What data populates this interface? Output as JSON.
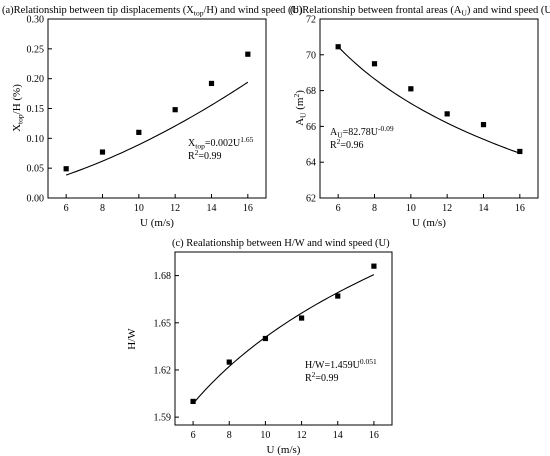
{
  "chart_data": [
    {
      "type": "scatter",
      "title_main": "(a)Relationship between tip displacements (X",
      "title_sub": "top",
      "title_tail": "/H) and wind speed (U)",
      "xlabel": "U (m/s)",
      "ylabel_main": "X",
      "ylabel_sub": "top",
      "ylabel_tail": "/H (%)",
      "xlim": [
        5,
        17
      ],
      "ylim": [
        0,
        0.3
      ],
      "xticks": [
        "6",
        "8",
        "10",
        "12",
        "14",
        "16"
      ],
      "yticks": [
        "0.00",
        "0.05",
        "0.10",
        "0.15",
        "0.20",
        "0.25",
        "0.30"
      ],
      "x": [
        6,
        8,
        10,
        12,
        14,
        16
      ],
      "y": [
        0.049,
        0.077,
        0.11,
        0.148,
        0.192,
        0.241
      ],
      "fit": {
        "a": 0.002,
        "b": 1.65
      },
      "eq_var": "X",
      "eq_var_sub": "top",
      "eq_rhs": "=0.002U",
      "eq_exp": "1.65",
      "r2_lhs": "R",
      "r2_exp": "2",
      "r2_rhs": "=0.99"
    },
    {
      "type": "scatter",
      "title_main": "(b)Relationship between  frontal areas (A",
      "title_sub": "U",
      "title_tail": ") and wind speed (U)",
      "xlabel": "U (m/s)",
      "ylabel_main": "A",
      "ylabel_sub": "U",
      "ylabel_tail": " (m",
      "ylabel_sup": "2",
      "ylabel_end": ")",
      "xlim": [
        5,
        17
      ],
      "ylim": [
        62,
        72
      ],
      "xticks": [
        "6",
        "8",
        "10",
        "12",
        "14",
        "16"
      ],
      "yticks": [
        "62",
        "64",
        "66",
        "68",
        "70",
        "72"
      ],
      "x": [
        6,
        8,
        10,
        12,
        14,
        16
      ],
      "y": [
        70.45,
        69.5,
        68.1,
        66.7,
        66.1,
        64.6
      ],
      "fit": {
        "a": 82.78,
        "b": -0.09
      },
      "eq_var": "A",
      "eq_var_sub": "U",
      "eq_rhs": "=82.78U",
      "eq_exp": "-0.09",
      "r2_lhs": "R",
      "r2_exp": "2",
      "r2_rhs": "=0.96"
    },
    {
      "type": "scatter",
      "title_main": "(c) Realationship between H/W and wind speed (U)",
      "xlabel": "U (m/s)",
      "ylabel_main": "H/W",
      "xlim": [
        5,
        17
      ],
      "ylim": [
        1.585,
        1.695
      ],
      "xticks": [
        "6",
        "8",
        "10",
        "12",
        "14",
        "16"
      ],
      "yticks": [
        "1.59",
        "1.62",
        "1.65",
        "1.68"
      ],
      "ytick_values": [
        1.59,
        1.62,
        1.65,
        1.68
      ],
      "x": [
        6,
        8,
        10,
        12,
        14,
        16
      ],
      "y": [
        1.6,
        1.625,
        1.64,
        1.653,
        1.667,
        1.686
      ],
      "fit": {
        "a": 1.459,
        "b": 0.051
      },
      "eq_var": "H/W",
      "eq_rhs": "=1.459U",
      "eq_exp": "0.051",
      "r2_lhs": "R",
      "r2_exp": "2",
      "r2_rhs": "=0.99"
    }
  ]
}
